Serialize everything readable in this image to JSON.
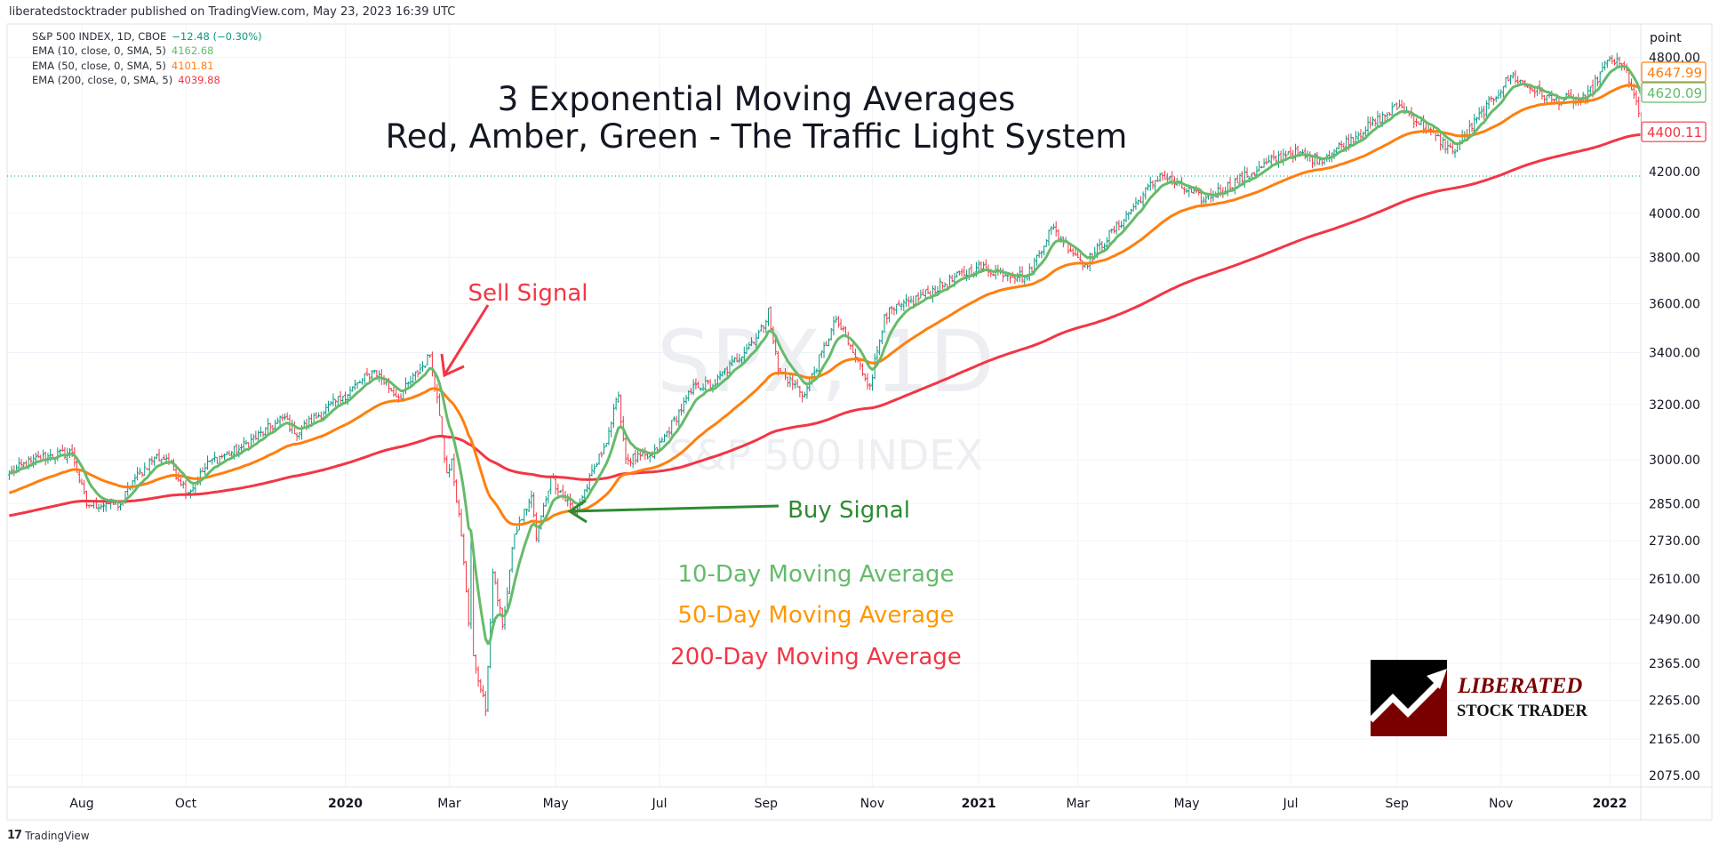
{
  "header": {
    "text": "liberatedstocktrader published on TradingView.com, May 23, 2023 16:39 UTC"
  },
  "legend": {
    "symbol": "S&P 500 INDEX, 1D, CBOE",
    "change": "−12.48 (−0.30%)",
    "ema10_label": "EMA (10, close, 0, SMA, 5)",
    "ema10_value": "4162.68",
    "ema50_label": "EMA (50, close, 0, SMA, 5)",
    "ema50_value": "4101.81",
    "ema200_label": "EMA (200, close, 0, SMA, 5)",
    "ema200_value": "4039.88"
  },
  "annotations": {
    "title_line1": "3 Exponential Moving Averages",
    "title_line2": "Red, Amber, Green - The Traffic Light System",
    "sell_signal": "Sell Signal",
    "buy_signal": "Buy Signal",
    "ma10_label": "10-Day Moving Average",
    "ma50_label": "50-Day Moving Average",
    "ma200_label": "200-Day Moving Average"
  },
  "watermark": {
    "symbol": "SPX, 1D",
    "name": "S&P 500 INDEX"
  },
  "logo": {
    "line1": "LIBERATED",
    "line2": "STOCK TRADER"
  },
  "footer": {
    "brand": "TradingView",
    "logo_text": "17"
  },
  "colors": {
    "up": "#089981",
    "down": "#f23645",
    "ema10": "#66bb6a",
    "ema50": "#ff7f0e",
    "ema200": "#f23645",
    "buy": "#2e8b32",
    "change": "#089981"
  },
  "chart_data": {
    "type": "ohlc-bar",
    "y_scale": "log",
    "y_unit_label": "point",
    "y_ticks": [
      4800,
      4200,
      4000,
      3800,
      3600,
      3400,
      3200,
      3000,
      2850,
      2730,
      2610,
      2490,
      2365,
      2265,
      2165,
      2075
    ],
    "x_ticks": [
      {
        "label": "Aug",
        "date": "2019-08-01"
      },
      {
        "label": "Oct",
        "date": "2019-10-01"
      },
      {
        "label": "2020",
        "date": "2020-01-01",
        "bold": true
      },
      {
        "label": "Mar",
        "date": "2020-03-02"
      },
      {
        "label": "May",
        "date": "2020-05-01"
      },
      {
        "label": "Jul",
        "date": "2020-07-01"
      },
      {
        "label": "Sep",
        "date": "2020-09-01"
      },
      {
        "label": "Nov",
        "date": "2020-11-02"
      },
      {
        "label": "2021",
        "date": "2021-01-01",
        "bold": true
      },
      {
        "label": "Mar",
        "date": "2021-03-01"
      },
      {
        "label": "May",
        "date": "2021-05-03"
      },
      {
        "label": "Jul",
        "date": "2021-07-01"
      },
      {
        "label": "Sep",
        "date": "2021-09-01"
      },
      {
        "label": "Nov",
        "date": "2021-11-01"
      },
      {
        "label": "2022",
        "date": "2022-01-03",
        "bold": true
      }
    ],
    "price_badges": [
      {
        "label": "4647.99",
        "series": "EMA 50"
      },
      {
        "label": "4620.09",
        "series": "EMA 10"
      },
      {
        "label": "4400.11",
        "series": "EMA 200"
      }
    ],
    "previous_close_line": 4178,
    "close_points": [
      [
        "2019-06-20",
        2954
      ],
      [
        "2019-07-03",
        2995
      ],
      [
        "2019-07-12",
        3013
      ],
      [
        "2019-07-26",
        3025
      ],
      [
        "2019-08-05",
        2845
      ],
      [
        "2019-08-15",
        2850
      ],
      [
        "2019-08-23",
        2847
      ],
      [
        "2019-08-30",
        2926
      ],
      [
        "2019-09-12",
        3009
      ],
      [
        "2019-09-19",
        3006
      ],
      [
        "2019-10-02",
        2887
      ],
      [
        "2019-10-15",
        2995
      ],
      [
        "2019-10-31",
        3037
      ],
      [
        "2019-11-27",
        3153
      ],
      [
        "2019-12-03",
        3093
      ],
      [
        "2019-12-31",
        3230
      ],
      [
        "2020-01-17",
        3330
      ],
      [
        "2020-01-31",
        3225
      ],
      [
        "2020-02-19",
        3386
      ],
      [
        "2020-02-24",
        3226
      ],
      [
        "2020-02-28",
        2954
      ],
      [
        "2020-03-03",
        3003
      ],
      [
        "2020-03-09",
        2746
      ],
      [
        "2020-03-12",
        2480
      ],
      [
        "2020-03-13",
        2711
      ],
      [
        "2020-03-16",
        2386
      ],
      [
        "2020-03-23",
        2237
      ],
      [
        "2020-03-26",
        2630
      ],
      [
        "2020-04-01",
        2470
      ],
      [
        "2020-04-08",
        2750
      ],
      [
        "2020-04-17",
        2875
      ],
      [
        "2020-04-21",
        2737
      ],
      [
        "2020-04-29",
        2940
      ],
      [
        "2020-05-13",
        2820
      ],
      [
        "2020-05-29",
        3044
      ],
      [
        "2020-06-08",
        3232
      ],
      [
        "2020-06-11",
        3002
      ],
      [
        "2020-06-26",
        3009
      ],
      [
        "2020-07-22",
        3276
      ],
      [
        "2020-07-31",
        3271
      ],
      [
        "2020-08-31",
        3500
      ],
      [
        "2020-09-02",
        3580
      ],
      [
        "2020-09-08",
        3331
      ],
      [
        "2020-09-23",
        3237
      ],
      [
        "2020-10-12",
        3534
      ],
      [
        "2020-10-30",
        3270
      ],
      [
        "2020-11-09",
        3550
      ],
      [
        "2020-12-31",
        3756
      ],
      [
        "2021-01-29",
        3714
      ],
      [
        "2021-02-12",
        3934
      ],
      [
        "2021-03-04",
        3768
      ],
      [
        "2021-04-16",
        4185
      ],
      [
        "2021-05-12",
        4063
      ],
      [
        "2021-06-30",
        4297
      ],
      [
        "2021-07-19",
        4258
      ],
      [
        "2021-09-02",
        4537
      ],
      [
        "2021-10-04",
        4300
      ],
      [
        "2021-11-05",
        4697
      ],
      [
        "2021-11-30",
        4567
      ],
      [
        "2021-12-20",
        4568
      ],
      [
        "2022-01-03",
        4796
      ],
      [
        "2022-01-12",
        4726
      ],
      [
        "2022-01-21",
        4398
      ]
    ],
    "series": [
      {
        "name": "EMA (10, close, 0, SMA, 5)",
        "color": "#66bb6a"
      },
      {
        "name": "EMA (50, close, 0, SMA, 5)",
        "color": "#ff7f0e"
      },
      {
        "name": "EMA (200, close, 0, SMA, 5)",
        "color": "#f23645"
      }
    ]
  }
}
